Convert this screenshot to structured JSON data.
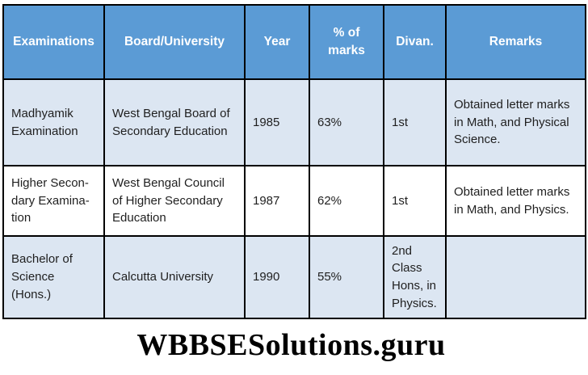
{
  "theme": {
    "header_bg": "#5b9bd5",
    "header_text": "#ffffff",
    "alt_row_bg": "#dce6f2",
    "plain_row_bg": "#ffffff",
    "border_color": "#000000",
    "body_text": "#1f1f1f"
  },
  "table": {
    "columns": [
      {
        "label": "Examinations"
      },
      {
        "label": "Board/University"
      },
      {
        "label": "Year"
      },
      {
        "label": "% of\nmarks"
      },
      {
        "label": "Divan."
      },
      {
        "label": "Remarks"
      }
    ],
    "rows": [
      {
        "examination": "Madhyamik Examination",
        "board": "West Bengal Board of Secondary Education",
        "year": "1985",
        "marks": "63%",
        "division": "1st",
        "remarks": "Obtained letter marks in Math, and Physical Science."
      },
      {
        "examination": "Higher Secon-\ndary Examina-\ntion",
        "board": "West Bengal Council of Higher Secondary Education",
        "year": "1987",
        "marks": "62%",
        "division": "1st",
        "remarks": "Obtained letter marks in Math, and Physics."
      },
      {
        "examination": "Bachelor of Science (Hons.)",
        "board": "Calcutta University",
        "year": "1990",
        "marks": "55%",
        "division": "2nd Class Hons, in Physics.",
        "remarks": ""
      }
    ]
  },
  "watermark": "WBBSESolutions.guru"
}
